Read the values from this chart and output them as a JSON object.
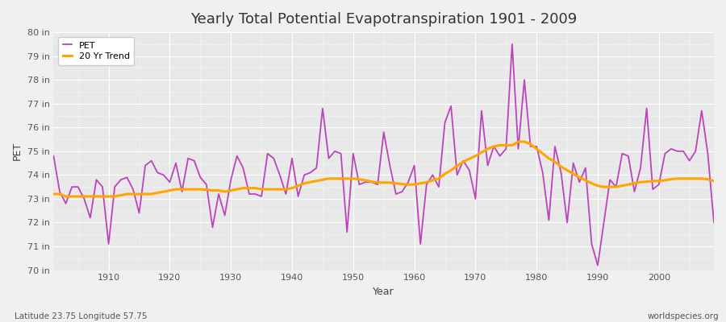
{
  "title": "Yearly Total Potential Evapotranspiration 1901 - 2009",
  "xlabel": "Year",
  "ylabel": "PET",
  "subtitle_left": "Latitude 23.75 Longitude 57.75",
  "subtitle_right": "worldspecies.org",
  "ylim": [
    70,
    80
  ],
  "yticks": [
    70,
    71,
    72,
    73,
    74,
    75,
    76,
    77,
    78,
    79,
    80
  ],
  "ytick_labels": [
    "70 in",
    "71 in",
    "72 in",
    "73 in",
    "74 in",
    "75 in",
    "76 in",
    "77 in",
    "78 in",
    "79 in",
    "80 in"
  ],
  "pet_color": "#BB44BB",
  "trend_color": "#FFA500",
  "background_color": "#F0F0F0",
  "plot_bg_color": "#E8E8E8",
  "legend_labels": [
    "PET",
    "20 Yr Trend"
  ],
  "years": [
    1901,
    1902,
    1903,
    1904,
    1905,
    1906,
    1907,
    1908,
    1909,
    1910,
    1911,
    1912,
    1913,
    1914,
    1915,
    1916,
    1917,
    1918,
    1919,
    1920,
    1921,
    1922,
    1923,
    1924,
    1925,
    1926,
    1927,
    1928,
    1929,
    1930,
    1931,
    1932,
    1933,
    1934,
    1935,
    1936,
    1937,
    1938,
    1939,
    1940,
    1941,
    1942,
    1943,
    1944,
    1945,
    1946,
    1947,
    1948,
    1949,
    1950,
    1951,
    1952,
    1953,
    1954,
    1955,
    1956,
    1957,
    1958,
    1959,
    1960,
    1961,
    1962,
    1963,
    1964,
    1965,
    1966,
    1967,
    1968,
    1969,
    1970,
    1971,
    1972,
    1973,
    1974,
    1975,
    1976,
    1977,
    1978,
    1979,
    1980,
    1981,
    1982,
    1983,
    1984,
    1985,
    1986,
    1987,
    1988,
    1989,
    1990,
    1991,
    1992,
    1993,
    1994,
    1995,
    1996,
    1997,
    1998,
    1999,
    2000,
    2001,
    2002,
    2003,
    2004,
    2005,
    2006,
    2007,
    2008,
    2009
  ],
  "pet_values": [
    74.8,
    73.3,
    72.8,
    73.5,
    73.5,
    73.0,
    72.2,
    73.8,
    73.5,
    71.1,
    73.5,
    73.8,
    73.9,
    73.4,
    72.4,
    74.4,
    74.6,
    74.1,
    74.0,
    73.7,
    74.5,
    73.3,
    74.7,
    74.6,
    73.9,
    73.6,
    71.8,
    73.2,
    72.3,
    73.8,
    74.8,
    74.3,
    73.2,
    73.2,
    73.1,
    74.9,
    74.7,
    74.0,
    73.2,
    74.7,
    73.1,
    74.0,
    74.1,
    74.3,
    76.8,
    74.7,
    75.0,
    74.9,
    71.6,
    74.9,
    73.6,
    73.7,
    73.7,
    73.6,
    75.8,
    74.4,
    73.2,
    73.3,
    73.7,
    74.4,
    71.1,
    73.6,
    74.0,
    73.5,
    76.2,
    76.9,
    74.0,
    74.6,
    74.2,
    73.0,
    76.7,
    74.4,
    75.2,
    74.8,
    75.1,
    79.5,
    75.1,
    78.0,
    75.2,
    75.2,
    74.1,
    72.1,
    75.2,
    74.1,
    72.0,
    74.5,
    73.7,
    74.3,
    71.1,
    70.2,
    72.0,
    73.8,
    73.5,
    74.9,
    74.8,
    73.3,
    74.3,
    76.8,
    73.4,
    73.6,
    74.9,
    75.1,
    75.0,
    75.0,
    74.6,
    75.0,
    76.7,
    74.9,
    72.0
  ],
  "trend_values": [
    73.2,
    73.2,
    73.1,
    73.1,
    73.1,
    73.1,
    73.1,
    73.1,
    73.1,
    73.1,
    73.1,
    73.15,
    73.2,
    73.2,
    73.2,
    73.2,
    73.2,
    73.25,
    73.3,
    73.35,
    73.4,
    73.4,
    73.4,
    73.4,
    73.4,
    73.38,
    73.35,
    73.35,
    73.3,
    73.35,
    73.4,
    73.45,
    73.45,
    73.45,
    73.4,
    73.4,
    73.4,
    73.4,
    73.4,
    73.45,
    73.55,
    73.65,
    73.7,
    73.75,
    73.8,
    73.85,
    73.85,
    73.85,
    73.85,
    73.85,
    73.82,
    73.78,
    73.72,
    73.68,
    73.68,
    73.68,
    73.65,
    73.62,
    73.6,
    73.6,
    73.65,
    73.7,
    73.78,
    73.85,
    74.05,
    74.2,
    74.38,
    74.55,
    74.68,
    74.8,
    74.95,
    75.1,
    75.2,
    75.25,
    75.25,
    75.25,
    75.4,
    75.4,
    75.3,
    75.1,
    74.9,
    74.7,
    74.55,
    74.35,
    74.2,
    74.05,
    73.9,
    73.78,
    73.65,
    73.55,
    73.5,
    73.5,
    73.5,
    73.55,
    73.6,
    73.65,
    73.7,
    73.72,
    73.75,
    73.75,
    73.78,
    73.82,
    73.85,
    73.85,
    73.85,
    73.85,
    73.85,
    73.82,
    73.75
  ]
}
